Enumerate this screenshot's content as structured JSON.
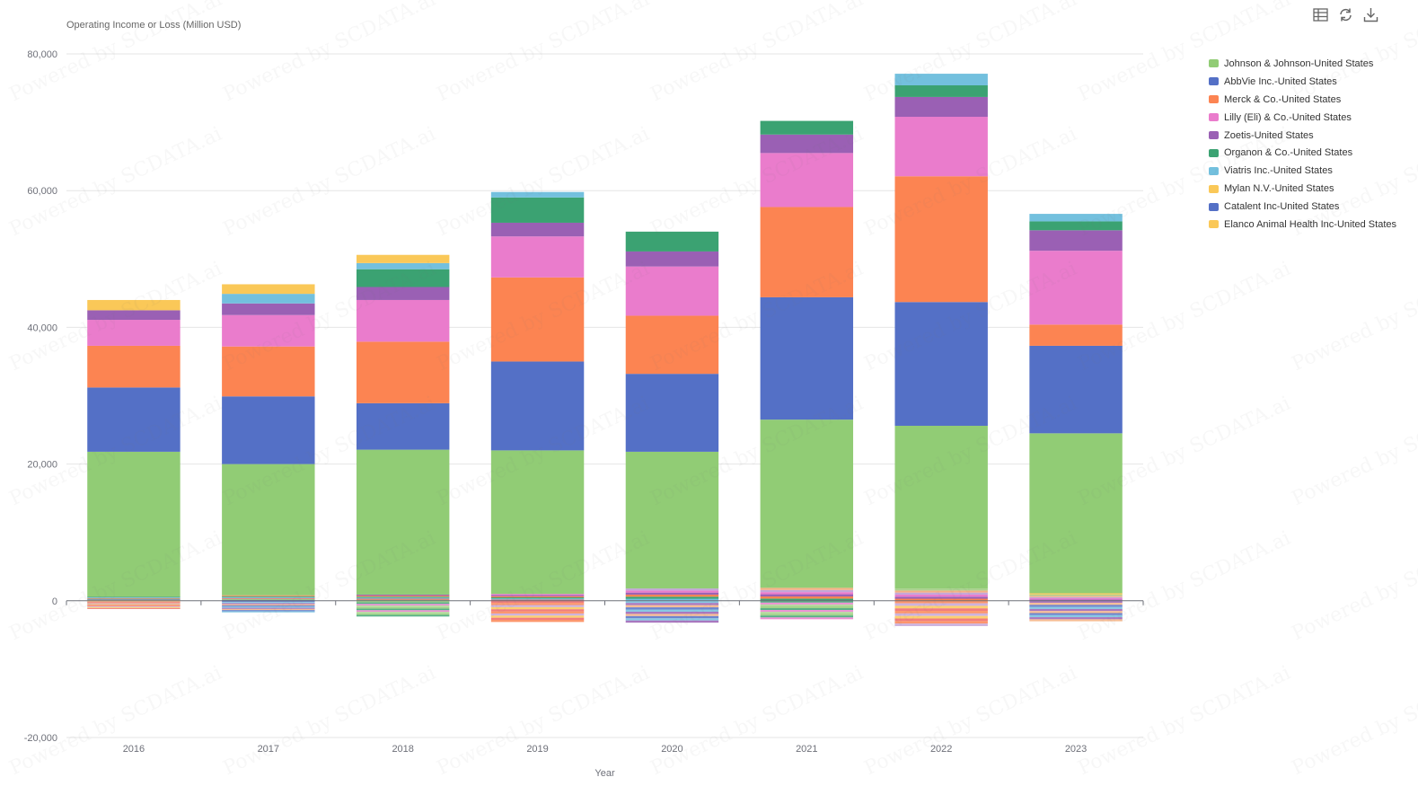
{
  "toolbar": {
    "icons": [
      "data-view-icon",
      "refresh-icon",
      "download-icon"
    ]
  },
  "chart_data": {
    "type": "bar",
    "stacked": true,
    "ylabel": "Operating Income or Loss (Million USD)",
    "xlabel": "Year",
    "ylim": [
      -20000,
      80000
    ],
    "yticks": [
      -20000,
      0,
      20000,
      40000,
      60000,
      80000
    ],
    "ytick_labels": [
      "-20,000",
      "0",
      "20,000",
      "40,000",
      "60,000",
      "80,000"
    ],
    "categories": [
      "2016",
      "2017",
      "2018",
      "2019",
      "2020",
      "2021",
      "2022",
      "2023"
    ],
    "legend_position": "top-right",
    "grid": true,
    "series": [
      {
        "name": "Johnson & Johnson-United States",
        "color": "#91cc75",
        "values": [
          21200,
          19200,
          21200,
          21000,
          20000,
          24600,
          23800,
          23400
        ]
      },
      {
        "name": "AbbVie Inc.-United States",
        "color": "#5470c6",
        "values": [
          9400,
          9900,
          6800,
          13000,
          11400,
          17900,
          18100,
          12800
        ]
      },
      {
        "name": "Merck & Co.-United States",
        "color": "#fc8452",
        "values": [
          6100,
          7300,
          9000,
          12300,
          8500,
          13200,
          18400,
          3100
        ]
      },
      {
        "name": "Lilly (Eli) & Co.-United States",
        "color": "#ea7ccc",
        "values": [
          3800,
          4600,
          6100,
          6000,
          7200,
          7900,
          8700,
          10800
        ]
      },
      {
        "name": "Zoetis-United States",
        "color": "#9a60b4",
        "values": [
          1400,
          1700,
          1900,
          2000,
          2200,
          2700,
          2900,
          3000
        ]
      },
      {
        "name": "Organon & Co.-United States",
        "color": "#3ba272",
        "values": [
          0,
          0,
          2600,
          3700,
          2900,
          2000,
          1700,
          1300
        ]
      },
      {
        "name": "Viatris Inc.-United States",
        "color": "#73c0de",
        "values": [
          0,
          1400,
          900,
          800,
          0,
          0,
          1700,
          1100
        ]
      },
      {
        "name": "Mylan N.V.-United States",
        "color": "#fac858",
        "values": [
          1500,
          1400,
          1200,
          0,
          0,
          0,
          0,
          0
        ]
      }
    ],
    "filler": {
      "positive_tops": [
        600,
        800,
        900,
        1000,
        1800,
        1900,
        1800,
        1100
      ],
      "negative_bottoms": [
        -1200,
        -1700,
        -2300,
        -3100,
        -3200,
        -2700,
        -3700,
        -3000
      ]
    },
    "extra_legend": [
      {
        "name": "Catalent Inc-United States",
        "color": "#5470c6"
      },
      {
        "name": "Elanco Animal Health Inc-United States",
        "color": "#fac858"
      }
    ]
  },
  "watermark": "Powered by SCDATA.ai"
}
